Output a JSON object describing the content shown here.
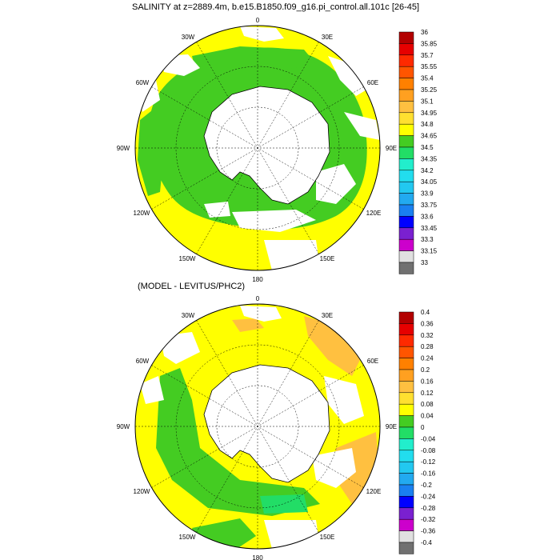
{
  "panels": [
    {
      "title": "SALINITY at z=2889.4m, b.e15.B1850.f09_g16.pi_control.all.101c [26-45]",
      "lon_labels": [
        "0",
        "30E",
        "60E",
        "90E",
        "120E",
        "150E",
        "180",
        "150W",
        "120W",
        "90W",
        "60W",
        "30W"
      ],
      "colorbar": {
        "labels": [
          "36",
          "35.85",
          "35.7",
          "35.55",
          "35.4",
          "35.25",
          "35.1",
          "34.95",
          "34.8",
          "34.65",
          "34.5",
          "34.35",
          "34.2",
          "34.05",
          "33.9",
          "33.75",
          "33.6",
          "33.45",
          "33.3",
          "33.15",
          "33"
        ],
        "colors": [
          "#b30000",
          "#e60000",
          "#ff2a00",
          "#ff5500",
          "#ff8000",
          "#ffa020",
          "#ffc040",
          "#ffe030",
          "#ffff00",
          "#44cc22",
          "#22dd66",
          "#22eecc",
          "#22ddee",
          "#22c8f0",
          "#22aaf0",
          "#1a80f0",
          "#0000ff",
          "#7a20d0",
          "#cc00cc",
          "#e0e0e0",
          "#707070"
        ]
      }
    },
    {
      "title": "(MODEL - LEVITUS/PHC2)",
      "lon_labels": [
        "0",
        "30E",
        "60E",
        "90E",
        "120E",
        "150E",
        "180",
        "150W",
        "120W",
        "90W",
        "60W",
        "30W"
      ],
      "colorbar": {
        "labels": [
          "0.4",
          "0.36",
          "0.32",
          "0.28",
          "0.24",
          "0.2",
          "0.16",
          "0.12",
          "0.08",
          "0.04",
          "0",
          "-0.04",
          "-0.08",
          "-0.12",
          "-0.16",
          "-0.2",
          "-0.24",
          "-0.28",
          "-0.32",
          "-0.36",
          "-0.4"
        ],
        "colors": [
          "#b30000",
          "#e60000",
          "#ff2a00",
          "#ff5500",
          "#ff8000",
          "#ffa020",
          "#ffc040",
          "#ffe030",
          "#ffff00",
          "#44cc22",
          "#22dd66",
          "#22eecc",
          "#22ddee",
          "#22c8f0",
          "#22aaf0",
          "#1a80f0",
          "#0000ff",
          "#7a20d0",
          "#cc00cc",
          "#e0e0e0",
          "#707070"
        ]
      }
    }
  ]
}
